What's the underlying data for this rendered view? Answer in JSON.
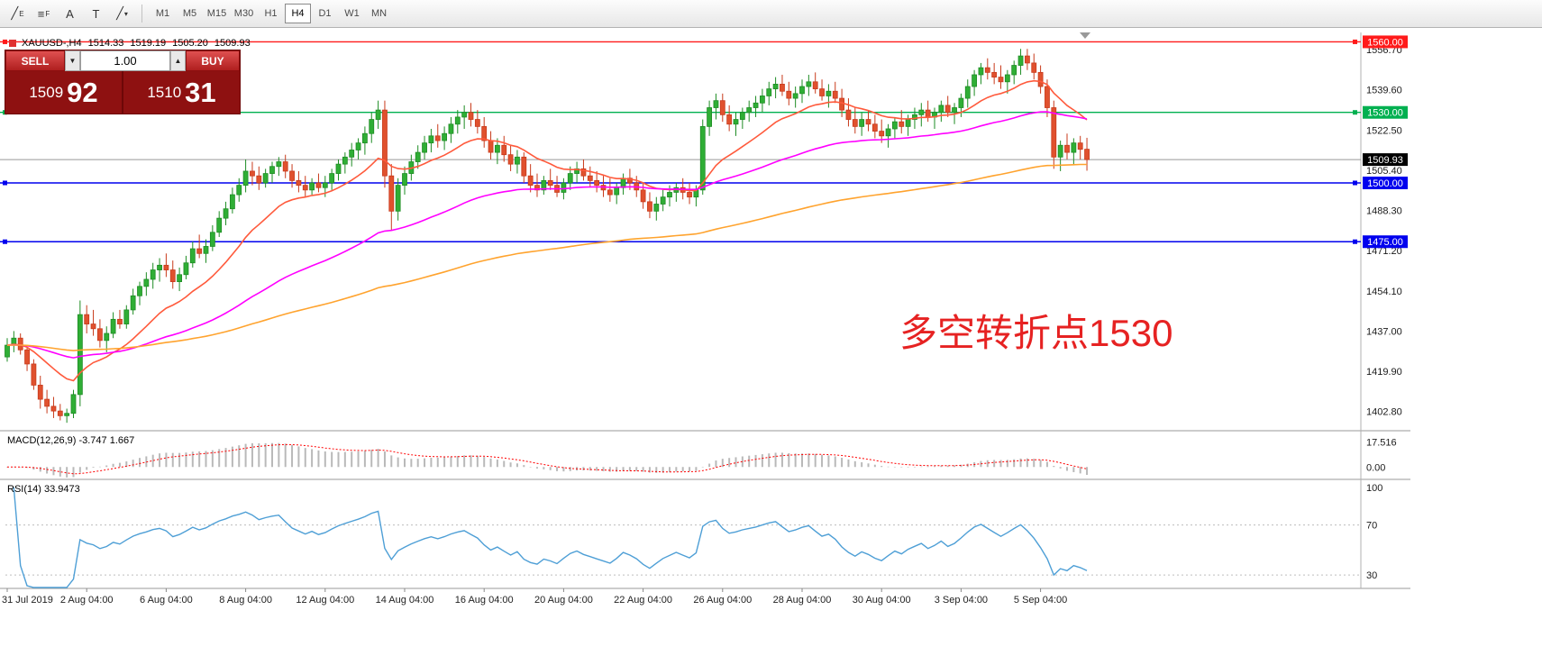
{
  "toolbar": {
    "tools": [
      {
        "name": "equidistant-channel-tool",
        "glyph": "╱",
        "sub": "E"
      },
      {
        "name": "fibonacci-tool",
        "glyph": "≡",
        "sub": "F"
      },
      {
        "name": "text-tool",
        "glyph": "A",
        "sub": ""
      },
      {
        "name": "text-label-tool",
        "glyph": "T",
        "sub": ""
      },
      {
        "name": "line-tools-dropdown",
        "glyph": "╱",
        "sub": "▾"
      }
    ],
    "timeframes": [
      "M1",
      "M5",
      "M15",
      "M30",
      "H1",
      "H4",
      "D1",
      "W1",
      "MN"
    ],
    "active_timeframe": "H4"
  },
  "chart_header": {
    "symbol": "XAUUSD-,H4",
    "open": "1514.33",
    "high": "1519.19",
    "low": "1505.20",
    "close": "1509.93"
  },
  "trade_panel": {
    "sell_label": "SELL",
    "buy_label": "BUY",
    "lot_value": "1.00",
    "lot_down_glyph": "▼",
    "lot_up_glyph": "▲",
    "sell_price_main": "1509",
    "sell_price_pips": "92",
    "buy_price_main": "1510",
    "buy_price_pips": "31"
  },
  "annotation": {
    "text": "多空转折点1530",
    "color": "#e62222"
  },
  "axis": {
    "price_ticks": [
      "1556.70",
      "1539.60",
      "1522.50",
      "1505.40",
      "1488.30",
      "1471.20",
      "1454.10",
      "1437.00",
      "1419.90",
      "1402.80"
    ],
    "current_price_label": "1509.93"
  },
  "chart_data": {
    "type": "candlestick",
    "symbol": "XAUUSD",
    "timeframe": "H4",
    "ylim": [
      1395,
      1564
    ],
    "current_price": 1509.93,
    "x_labels": [
      "31 Jul 2019",
      "2 Aug 04:00",
      "6 Aug 04:00",
      "8 Aug 04:00",
      "12 Aug 04:00",
      "14 Aug 04:00",
      "16 Aug 04:00",
      "20 Aug 04:00",
      "22 Aug 04:00",
      "26 Aug 04:00",
      "28 Aug 04:00",
      "30 Aug 04:00",
      "3 Sep 04:00",
      "5 Sep 04:00"
    ],
    "x_label_every": 12,
    "hlines": [
      {
        "price": 1560.0,
        "color": "#ff1a1a",
        "label": "1560.00"
      },
      {
        "price": 1530.0,
        "color": "#00b050",
        "label": "1530.00"
      },
      {
        "price": 1500.0,
        "color": "#0000ee",
        "label": "1500.00"
      },
      {
        "price": 1475.0,
        "color": "#0000ee",
        "label": "1475.00"
      }
    ],
    "moving_averages": [
      {
        "period": 16,
        "color": "#ff5a3c"
      },
      {
        "period": 60,
        "color": "#ff00ff"
      },
      {
        "period": 150,
        "color": "#ffa32e"
      }
    ],
    "macd": {
      "label": "MACD(12,26,9) -3.747 1.667",
      "fast": 12,
      "slow": 26,
      "signal": 9,
      "scale_labels": [
        "17.516",
        "0.00"
      ],
      "range": [
        -8,
        24
      ],
      "hist_color": "#b9b9b9",
      "signal_color": "#ff0000"
    },
    "rsi": {
      "label": "RSI(14) 33.9473",
      "period": 14,
      "levels": [
        70,
        30
      ],
      "scale_labels": [
        "100",
        "70",
        "30"
      ],
      "range": [
        20,
        105
      ],
      "color": "#4e9fd6"
    },
    "colors": {
      "bull": "#1e8c24",
      "bull_fill": "#2fae35",
      "bear": "#c83a1b",
      "bear_fill": "#e0512e"
    },
    "candles": [
      [
        1426,
        1434,
        1424,
        1431
      ],
      [
        1431,
        1437,
        1428,
        1434
      ],
      [
        1434,
        1436,
        1427,
        1429
      ],
      [
        1429,
        1430,
        1420,
        1423
      ],
      [
        1423,
        1425,
        1412,
        1414
      ],
      [
        1414,
        1418,
        1404,
        1408
      ],
      [
        1408,
        1412,
        1402,
        1405
      ],
      [
        1405,
        1409,
        1400,
        1403
      ],
      [
        1403,
        1406,
        1399,
        1401
      ],
      [
        1401,
        1404,
        1398,
        1402
      ],
      [
        1402,
        1412,
        1400,
        1410
      ],
      [
        1410,
        1450,
        1405,
        1444
      ],
      [
        1444,
        1448,
        1436,
        1440
      ],
      [
        1440,
        1446,
        1435,
        1438
      ],
      [
        1438,
        1442,
        1430,
        1433
      ],
      [
        1433,
        1439,
        1428,
        1436
      ],
      [
        1436,
        1445,
        1434,
        1442
      ],
      [
        1442,
        1446,
        1438,
        1440
      ],
      [
        1440,
        1448,
        1438,
        1446
      ],
      [
        1446,
        1455,
        1444,
        1452
      ],
      [
        1452,
        1458,
        1448,
        1456
      ],
      [
        1456,
        1462,
        1452,
        1459
      ],
      [
        1459,
        1466,
        1455,
        1463
      ],
      [
        1463,
        1468,
        1458,
        1465
      ],
      [
        1465,
        1470,
        1460,
        1463
      ],
      [
        1463,
        1467,
        1455,
        1458
      ],
      [
        1458,
        1464,
        1454,
        1461
      ],
      [
        1461,
        1469,
        1459,
        1466
      ],
      [
        1466,
        1475,
        1464,
        1472
      ],
      [
        1472,
        1478,
        1468,
        1470
      ],
      [
        1470,
        1476,
        1466,
        1473
      ],
      [
        1473,
        1482,
        1471,
        1479
      ],
      [
        1479,
        1488,
        1477,
        1485
      ],
      [
        1485,
        1492,
        1482,
        1489
      ],
      [
        1489,
        1498,
        1487,
        1495
      ],
      [
        1495,
        1502,
        1492,
        1499
      ],
      [
        1499,
        1510,
        1496,
        1505
      ],
      [
        1505,
        1509,
        1499,
        1503
      ],
      [
        1503,
        1507,
        1497,
        1500
      ],
      [
        1500,
        1506,
        1498,
        1504
      ],
      [
        1504,
        1509,
        1500,
        1507
      ],
      [
        1507,
        1511,
        1503,
        1509
      ],
      [
        1509,
        1512,
        1502,
        1505
      ],
      [
        1505,
        1508,
        1498,
        1501
      ],
      [
        1501,
        1505,
        1496,
        1499
      ],
      [
        1499,
        1503,
        1494,
        1497
      ],
      [
        1497,
        1502,
        1495,
        1500
      ],
      [
        1500,
        1504,
        1496,
        1498
      ],
      [
        1498,
        1503,
        1494,
        1500
      ],
      [
        1500,
        1506,
        1497,
        1504
      ],
      [
        1504,
        1510,
        1501,
        1508
      ],
      [
        1508,
        1513,
        1504,
        1511
      ],
      [
        1511,
        1517,
        1507,
        1514
      ],
      [
        1514,
        1519,
        1510,
        1517
      ],
      [
        1517,
        1524,
        1512,
        1521
      ],
      [
        1521,
        1530,
        1517,
        1527
      ],
      [
        1527,
        1535,
        1523,
        1531
      ],
      [
        1531,
        1535,
        1498,
        1503
      ],
      [
        1503,
        1508,
        1480,
        1488
      ],
      [
        1488,
        1502,
        1484,
        1499
      ],
      [
        1499,
        1507,
        1495,
        1504
      ],
      [
        1504,
        1512,
        1501,
        1509
      ],
      [
        1509,
        1516,
        1506,
        1513
      ],
      [
        1513,
        1520,
        1510,
        1517
      ],
      [
        1517,
        1523,
        1513,
        1520
      ],
      [
        1520,
        1525,
        1515,
        1518
      ],
      [
        1518,
        1524,
        1514,
        1521
      ],
      [
        1521,
        1528,
        1517,
        1525
      ],
      [
        1525,
        1531,
        1521,
        1528
      ],
      [
        1528,
        1533,
        1523,
        1530
      ],
      [
        1530,
        1534,
        1524,
        1527
      ],
      [
        1527,
        1531,
        1521,
        1524
      ],
      [
        1524,
        1528,
        1515,
        1518
      ],
      [
        1518,
        1522,
        1510,
        1513
      ],
      [
        1513,
        1519,
        1508,
        1516
      ],
      [
        1516,
        1520,
        1509,
        1512
      ],
      [
        1512,
        1516,
        1505,
        1508
      ],
      [
        1508,
        1514,
        1504,
        1511
      ],
      [
        1511,
        1513,
        1500,
        1503
      ],
      [
        1503,
        1508,
        1496,
        1499
      ],
      [
        1499,
        1504,
        1494,
        1497
      ],
      [
        1497,
        1503,
        1495,
        1501
      ],
      [
        1501,
        1506,
        1497,
        1499
      ],
      [
        1499,
        1503,
        1494,
        1496
      ],
      [
        1496,
        1502,
        1493,
        1500
      ],
      [
        1500,
        1507,
        1497,
        1504
      ],
      [
        1504,
        1509,
        1500,
        1506
      ],
      [
        1506,
        1510,
        1501,
        1503
      ],
      [
        1503,
        1507,
        1498,
        1501
      ],
      [
        1501,
        1505,
        1496,
        1499
      ],
      [
        1499,
        1503,
        1494,
        1497
      ],
      [
        1497,
        1502,
        1492,
        1495
      ],
      [
        1495,
        1500,
        1491,
        1498
      ],
      [
        1498,
        1504,
        1495,
        1502
      ],
      [
        1502,
        1506,
        1497,
        1500
      ],
      [
        1500,
        1503,
        1494,
        1497
      ],
      [
        1497,
        1500,
        1489,
        1492
      ],
      [
        1492,
        1496,
        1485,
        1488
      ],
      [
        1488,
        1494,
        1484,
        1491
      ],
      [
        1491,
        1497,
        1488,
        1494
      ],
      [
        1494,
        1499,
        1490,
        1496
      ],
      [
        1496,
        1500,
        1492,
        1498
      ],
      [
        1498,
        1502,
        1493,
        1496
      ],
      [
        1496,
        1500,
        1491,
        1494
      ],
      [
        1494,
        1499,
        1490,
        1497
      ],
      [
        1497,
        1527,
        1495,
        1524
      ],
      [
        1524,
        1535,
        1520,
        1532
      ],
      [
        1532,
        1538,
        1527,
        1535
      ],
      [
        1535,
        1538,
        1526,
        1529
      ],
      [
        1529,
        1533,
        1522,
        1525
      ],
      [
        1525,
        1530,
        1520,
        1527
      ],
      [
        1527,
        1532,
        1523,
        1530
      ],
      [
        1530,
        1535,
        1526,
        1532
      ],
      [
        1532,
        1537,
        1528,
        1534
      ],
      [
        1534,
        1540,
        1530,
        1537
      ],
      [
        1537,
        1543,
        1533,
        1540
      ],
      [
        1540,
        1545,
        1536,
        1542
      ],
      [
        1542,
        1546,
        1537,
        1539
      ],
      [
        1539,
        1543,
        1533,
        1536
      ],
      [
        1536,
        1541,
        1532,
        1538
      ],
      [
        1538,
        1544,
        1534,
        1541
      ],
      [
        1541,
        1546,
        1537,
        1543
      ],
      [
        1543,
        1547,
        1538,
        1540
      ],
      [
        1540,
        1544,
        1535,
        1537
      ],
      [
        1537,
        1542,
        1532,
        1539
      ],
      [
        1539,
        1543,
        1534,
        1536
      ],
      [
        1536,
        1540,
        1528,
        1531
      ],
      [
        1531,
        1536,
        1524,
        1527
      ],
      [
        1527,
        1532,
        1521,
        1524
      ],
      [
        1524,
        1530,
        1520,
        1527
      ],
      [
        1527,
        1531,
        1522,
        1525
      ],
      [
        1525,
        1529,
        1519,
        1522
      ],
      [
        1522,
        1527,
        1517,
        1520
      ],
      [
        1520,
        1525,
        1515,
        1523
      ],
      [
        1523,
        1528,
        1519,
        1526
      ],
      [
        1526,
        1531,
        1521,
        1524
      ],
      [
        1524,
        1529,
        1520,
        1527
      ],
      [
        1527,
        1532,
        1523,
        1529
      ],
      [
        1529,
        1534,
        1524,
        1531
      ],
      [
        1531,
        1535,
        1526,
        1528
      ],
      [
        1528,
        1532,
        1523,
        1530
      ],
      [
        1530,
        1535,
        1526,
        1533
      ],
      [
        1533,
        1537,
        1528,
        1530
      ],
      [
        1530,
        1534,
        1525,
        1532
      ],
      [
        1532,
        1538,
        1528,
        1536
      ],
      [
        1536,
        1544,
        1532,
        1541
      ],
      [
        1541,
        1548,
        1537,
        1546
      ],
      [
        1546,
        1551,
        1542,
        1549
      ],
      [
        1549,
        1553,
        1544,
        1547
      ],
      [
        1547,
        1551,
        1542,
        1545
      ],
      [
        1545,
        1550,
        1540,
        1543
      ],
      [
        1543,
        1548,
        1538,
        1546
      ],
      [
        1546,
        1552,
        1542,
        1550
      ],
      [
        1550,
        1557,
        1546,
        1554
      ],
      [
        1554,
        1557,
        1548,
        1551
      ],
      [
        1551,
        1555,
        1544,
        1547
      ],
      [
        1547,
        1550,
        1538,
        1541
      ],
      [
        1541,
        1544,
        1528,
        1532
      ],
      [
        1532,
        1535,
        1506,
        1511
      ],
      [
        1511,
        1518,
        1505,
        1516
      ],
      [
        1516,
        1521,
        1510,
        1513
      ],
      [
        1513,
        1519,
        1508,
        1517
      ],
      [
        1517,
        1520,
        1510,
        1514.3
      ],
      [
        1514.33,
        1519.19,
        1505.2,
        1509.93
      ]
    ]
  }
}
